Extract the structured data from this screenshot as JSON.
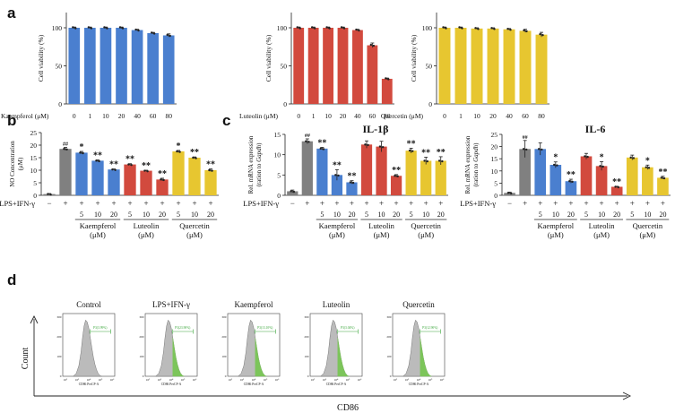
{
  "panel_labels": {
    "a": "a",
    "b": "b",
    "c": "c",
    "d": "d"
  },
  "colors": {
    "gray": "#808080",
    "blue": "#4a7fcf",
    "red": "#d24a3e",
    "yellow": "#e7c630",
    "green": "#7cc55a",
    "histogray": "#bbbbbb"
  },
  "chart_data": [
    {
      "id": "a1",
      "type": "bar",
      "title": "",
      "ylabel": "Cell viability (%)",
      "xlabel": "Kaempferol (μM)",
      "categories": [
        "0",
        "1",
        "10",
        "20",
        "40",
        "60",
        "80"
      ],
      "values": [
        100,
        100,
        100,
        100,
        97,
        93,
        90
      ],
      "errors": [
        1,
        1,
        1,
        1,
        1,
        1,
        2
      ],
      "ylim": [
        0,
        120
      ],
      "yticks": [
        0,
        50,
        100
      ],
      "color": "blue"
    },
    {
      "id": "a2",
      "type": "bar",
      "title": "",
      "ylabel": "Cell viability (%)",
      "xlabel": "Luteolin (μM)",
      "categories": [
        "0",
        "1",
        "10",
        "20",
        "40",
        "60",
        "80"
      ],
      "values": [
        100,
        100,
        100,
        100,
        97,
        77,
        33
      ],
      "errors": [
        1,
        1,
        1,
        1,
        1,
        3,
        1
      ],
      "ylim": [
        0,
        120
      ],
      "yticks": [
        0,
        50,
        100
      ],
      "color": "red"
    },
    {
      "id": "a3",
      "type": "bar",
      "title": "",
      "ylabel": "Cell viability (%)",
      "xlabel": "Quercetin (μM)",
      "categories": [
        "0",
        "1",
        "10",
        "20",
        "40",
        "60",
        "80"
      ],
      "values": [
        100,
        100,
        99,
        99,
        98,
        96,
        91
      ],
      "errors": [
        1,
        1,
        1,
        1,
        1,
        2,
        3
      ],
      "ylim": [
        0,
        120
      ],
      "yticks": [
        0,
        50,
        100
      ],
      "color": "yellow"
    },
    {
      "id": "b",
      "type": "bar",
      "title": "",
      "ylabel": "NO Concentration (μM)",
      "values": [
        0.5,
        18.5,
        17.0,
        13.8,
        10.3,
        12.3,
        9.8,
        6.3,
        17.5,
        15.0,
        10.0
      ],
      "errors": [
        0.2,
        0.6,
        0.5,
        0.3,
        0.2,
        0.3,
        0.2,
        0.5,
        0.4,
        0.3,
        0.5
      ],
      "colors": [
        "gray",
        "gray",
        "blue",
        "blue",
        "blue",
        "red",
        "red",
        "red",
        "yellow",
        "yellow",
        "yellow"
      ],
      "sig": [
        "",
        "##",
        "*",
        "**",
        "**",
        "**",
        "**",
        "**",
        "*",
        "**",
        "**"
      ],
      "ylim": [
        0,
        25
      ],
      "yticks": [
        0,
        5,
        10,
        15,
        20,
        25
      ],
      "row_label": "LPS+IFN-γ",
      "lps": [
        "−",
        "+",
        "+",
        "+",
        "+",
        "+",
        "+",
        "+",
        "+",
        "+",
        "+"
      ],
      "doses": [
        "",
        "",
        "5",
        "10",
        "20",
        "5",
        "10",
        "20",
        "5",
        "10",
        "20"
      ],
      "groups": [
        {
          "label1": "Kaempferol",
          "label2": "(μM)",
          "from": 2,
          "to": 4
        },
        {
          "label1": "Luteolin",
          "label2": "(μM)",
          "from": 5,
          "to": 7
        },
        {
          "label1": "Quercetin",
          "label2": "(μM)",
          "from": 8,
          "to": 10
        }
      ]
    },
    {
      "id": "c1",
      "type": "bar",
      "title": "IL-1β",
      "ylabel": "Rel. mRNA expression",
      "ylabel2_pre": "(ration to ",
      "ylabel2_gene": "Gapdh",
      "ylabel2_post": ")",
      "values": [
        1.0,
        13.3,
        11.5,
        5.0,
        3.2,
        12.5,
        12.0,
        4.8,
        11.0,
        8.5,
        8.5
      ],
      "errors": [
        0.3,
        0.6,
        0.3,
        1.3,
        0.4,
        0.9,
        1.3,
        0.3,
        0.6,
        0.9,
        1.0
      ],
      "colors": [
        "gray",
        "gray",
        "blue",
        "blue",
        "blue",
        "red",
        "red",
        "red",
        "yellow",
        "yellow",
        "yellow"
      ],
      "sig": [
        "",
        "##",
        "**",
        "**",
        "**",
        "",
        "",
        "**",
        "**",
        "**",
        "**"
      ],
      "ylim": [
        0,
        15
      ],
      "yticks": [
        0,
        5,
        10,
        15
      ],
      "row_label": "LPS+IFN-γ",
      "lps": [
        "−",
        "+",
        "+",
        "+",
        "+",
        "+",
        "+",
        "+",
        "+",
        "+",
        "+"
      ],
      "doses": [
        "",
        "",
        "5",
        "10",
        "20",
        "5",
        "10",
        "20",
        "5",
        "10",
        "20"
      ],
      "groups": [
        {
          "label1": "Kaempferol",
          "label2": "(μM)",
          "from": 2,
          "to": 4
        },
        {
          "label1": "Luteolin",
          "label2": "(μM)",
          "from": 5,
          "to": 7
        },
        {
          "label1": "Quercetin",
          "label2": "(μM)",
          "from": 8,
          "to": 10
        }
      ]
    },
    {
      "id": "c2",
      "type": "bar",
      "title": "IL-6",
      "ylabel": "Rel. mRNA expression",
      "ylabel2_pre": "(ration to ",
      "ylabel2_gene": "Gapdh",
      "ylabel2_post": ")",
      "values": [
        1.0,
        19.0,
        19.0,
        12.5,
        5.8,
        16.0,
        12.0,
        3.5,
        15.5,
        11.5,
        7.2
      ],
      "errors": [
        0.3,
        3.5,
        2.5,
        1.2,
        0.8,
        1.2,
        1.8,
        0.2,
        1.0,
        0.9,
        0.6
      ],
      "colors": [
        "gray",
        "gray",
        "blue",
        "blue",
        "blue",
        "red",
        "red",
        "red",
        "yellow",
        "yellow",
        "yellow"
      ],
      "sig": [
        "",
        "##",
        "",
        "*",
        "**",
        "",
        "*",
        "**",
        "",
        "*",
        "**"
      ],
      "ylim": [
        0,
        25
      ],
      "yticks": [
        0,
        5,
        10,
        15,
        20,
        25
      ],
      "row_label": "LPS+IFN-γ",
      "lps": [
        "−",
        "+",
        "+",
        "+",
        "+",
        "+",
        "+",
        "+",
        "+",
        "+",
        "+"
      ],
      "doses": [
        "",
        "",
        "5",
        "10",
        "20",
        "5",
        "10",
        "20",
        "5",
        "10",
        "20"
      ],
      "groups": [
        {
          "label1": "Kaempferol",
          "label2": "(μM)",
          "from": 2,
          "to": 4
        },
        {
          "label1": "Luteolin",
          "label2": "(μM)",
          "from": 5,
          "to": 7
        },
        {
          "label1": "Quercetin",
          "label2": "(μM)",
          "from": 8,
          "to": 10
        }
      ]
    },
    {
      "id": "d",
      "type": "histogram",
      "ylabel": "Count",
      "xlabel": "CD86",
      "panels": [
        {
          "title": "Control",
          "gate": "P3(3.99%)",
          "green": false
        },
        {
          "title": "LPS+IFN-γ",
          "gate": "P3(23.90%)",
          "green": true
        },
        {
          "title": "Kaempferol",
          "gate": "P3(13.10%)",
          "green": true
        },
        {
          "title": "Luteolin",
          "gate": "P3(3.04%)",
          "green": true
        },
        {
          "title": "Quercetin",
          "gate": "P3(12.90%)",
          "green": true
        }
      ],
      "inner_xaxis": "CD86 PerCP-A",
      "inner_yticks": [
        "0",
        "100",
        "200",
        "300"
      ],
      "inner_xticks": [
        "10²",
        "10³",
        "10⁴",
        "10⁵",
        "10⁶"
      ]
    }
  ]
}
